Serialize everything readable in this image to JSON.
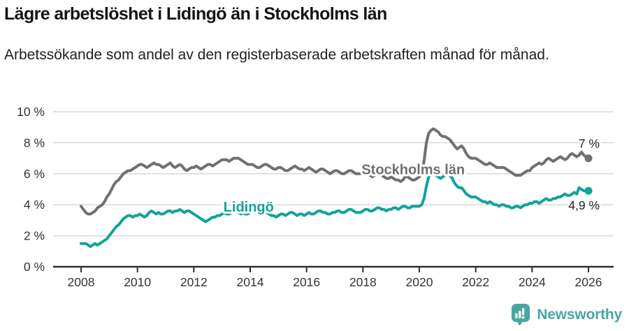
{
  "header": {
    "title": "Lägre arbetslöshet i Lidingö än i Stockholms län",
    "subtitle": "Arbetssökande som andel av den registerbaserade arbetskraften månad för månad."
  },
  "chart_data": {
    "type": "line",
    "title": "Lägre arbetslöshet i Lidingö än i Stockholms län",
    "subtitle": "Arbetssökande som andel av den registerbaserade arbetskraften månad för månad.",
    "x_unit": "year",
    "y_unit": "%",
    "xlim": [
      2008.0,
      2026.2
    ],
    "ylim": [
      0,
      10
    ],
    "grid": "horizontal",
    "legend_position": "inline-labels",
    "colors": {
      "grid": "#d8d8d8",
      "axis": "#2f2f2f",
      "tick_label": "#333333",
      "annotation": "#222222"
    },
    "x_ticks": [
      {
        "label": "2008",
        "year": 2008
      },
      {
        "label": "2010",
        "year": 2010
      },
      {
        "label": "2012",
        "year": 2012
      },
      {
        "label": "2014",
        "year": 2014
      },
      {
        "label": "2016",
        "year": 2016
      },
      {
        "label": "2018",
        "year": 2018
      },
      {
        "label": "2020",
        "year": 2020
      },
      {
        "label": "2022",
        "year": 2022
      },
      {
        "label": "2024",
        "year": 2024
      },
      {
        "label": "2026",
        "year": 2026
      }
    ],
    "y_ticks": [
      {
        "label": "0 %",
        "value": 0
      },
      {
        "label": "2 %",
        "value": 2
      },
      {
        "label": "4 %",
        "value": 4
      },
      {
        "label": "6 %",
        "value": 6
      },
      {
        "label": "8 %",
        "value": 8
      },
      {
        "label": "10 %",
        "value": 10
      }
    ],
    "series": [
      {
        "name": "Stockholms län",
        "color": "#6f6f74",
        "start_year": 2008,
        "interval_months": 1,
        "name_label": {
          "year": 2017.95,
          "value": 6.28
        },
        "end_label": {
          "text": "7 %",
          "side": "above"
        },
        "values": [
          3.9,
          3.7,
          3.5,
          3.4,
          3.4,
          3.5,
          3.6,
          3.8,
          3.9,
          4.0,
          4.2,
          4.5,
          4.7,
          5.0,
          5.3,
          5.5,
          5.6,
          5.8,
          6.0,
          6.1,
          6.2,
          6.2,
          6.3,
          6.4,
          6.5,
          6.6,
          6.6,
          6.5,
          6.4,
          6.5,
          6.6,
          6.7,
          6.6,
          6.6,
          6.5,
          6.4,
          6.5,
          6.6,
          6.7,
          6.5,
          6.4,
          6.5,
          6.6,
          6.5,
          6.3,
          6.2,
          6.3,
          6.4,
          6.4,
          6.5,
          6.4,
          6.3,
          6.4,
          6.5,
          6.6,
          6.6,
          6.5,
          6.6,
          6.7,
          6.8,
          6.9,
          6.9,
          6.9,
          6.8,
          6.9,
          7.0,
          7.0,
          7.0,
          6.9,
          6.8,
          6.7,
          6.6,
          6.6,
          6.6,
          6.5,
          6.4,
          6.4,
          6.5,
          6.6,
          6.6,
          6.5,
          6.4,
          6.3,
          6.3,
          6.4,
          6.4,
          6.3,
          6.2,
          6.2,
          6.3,
          6.4,
          6.5,
          6.4,
          6.3,
          6.3,
          6.2,
          6.3,
          6.4,
          6.3,
          6.2,
          6.1,
          6.2,
          6.3,
          6.3,
          6.2,
          6.1,
          6.0,
          6.1,
          6.2,
          6.2,
          6.1,
          6.0,
          6.0,
          6.1,
          6.2,
          6.2,
          6.1,
          6.0,
          6.0,
          6.0,
          6.1,
          6.0,
          6.0,
          5.9,
          5.8,
          5.9,
          6.0,
          6.0,
          5.9,
          5.8,
          5.7,
          5.7,
          5.8,
          5.7,
          5.6,
          5.6,
          5.5,
          5.6,
          5.8,
          5.8,
          5.7,
          5.6,
          5.6,
          5.7,
          5.8,
          6.0,
          6.8,
          8.0,
          8.6,
          8.8,
          8.9,
          8.8,
          8.7,
          8.5,
          8.4,
          8.4,
          8.3,
          8.2,
          8.0,
          7.8,
          7.6,
          7.7,
          7.8,
          7.6,
          7.3,
          7.1,
          7.0,
          7.0,
          7.0,
          6.9,
          6.8,
          6.7,
          6.6,
          6.6,
          6.7,
          6.6,
          6.5,
          6.4,
          6.4,
          6.4,
          6.4,
          6.3,
          6.2,
          6.1,
          6.0,
          5.9,
          5.9,
          5.9,
          6.0,
          6.1,
          6.2,
          6.2,
          6.4,
          6.5,
          6.6,
          6.7,
          6.6,
          6.7,
          6.9,
          7.0,
          6.9,
          6.8,
          6.9,
          7.0,
          7.1,
          7.0,
          6.9,
          7.0,
          7.2,
          7.3,
          7.2,
          7.1,
          7.2,
          7.4,
          7.2,
          7.1,
          7.0
        ]
      },
      {
        "name": "Lidingö",
        "color": "#10a39c",
        "start_year": 2008,
        "interval_months": 1,
        "name_label": {
          "year": 2013.05,
          "value": 3.88
        },
        "end_label": {
          "text": "4,9 %",
          "side": "below"
        },
        "values": [
          1.5,
          1.5,
          1.5,
          1.4,
          1.3,
          1.4,
          1.5,
          1.4,
          1.5,
          1.6,
          1.7,
          1.8,
          2.0,
          2.2,
          2.4,
          2.6,
          2.7,
          2.9,
          3.1,
          3.2,
          3.3,
          3.3,
          3.2,
          3.3,
          3.3,
          3.4,
          3.3,
          3.2,
          3.3,
          3.5,
          3.6,
          3.5,
          3.4,
          3.5,
          3.4,
          3.4,
          3.5,
          3.6,
          3.6,
          3.5,
          3.6,
          3.6,
          3.7,
          3.6,
          3.5,
          3.6,
          3.6,
          3.5,
          3.4,
          3.3,
          3.2,
          3.1,
          3.0,
          2.9,
          3.0,
          3.1,
          3.2,
          3.2,
          3.3,
          3.3,
          3.4,
          3.5,
          3.4,
          3.4,
          3.5,
          3.6,
          3.6,
          3.5,
          3.4,
          3.5,
          3.4,
          3.4,
          3.5,
          3.6,
          3.5,
          3.5,
          3.6,
          3.5,
          3.6,
          3.5,
          3.4,
          3.3,
          3.3,
          3.2,
          3.3,
          3.4,
          3.4,
          3.3,
          3.4,
          3.5,
          3.5,
          3.4,
          3.3,
          3.4,
          3.4,
          3.3,
          3.4,
          3.5,
          3.4,
          3.4,
          3.5,
          3.6,
          3.6,
          3.5,
          3.5,
          3.4,
          3.4,
          3.5,
          3.5,
          3.6,
          3.6,
          3.5,
          3.5,
          3.6,
          3.7,
          3.7,
          3.6,
          3.5,
          3.5,
          3.5,
          3.6,
          3.7,
          3.7,
          3.6,
          3.6,
          3.7,
          3.8,
          3.8,
          3.7,
          3.7,
          3.6,
          3.7,
          3.7,
          3.8,
          3.8,
          3.7,
          3.8,
          3.9,
          3.9,
          3.8,
          3.8,
          3.9,
          3.9,
          3.9,
          3.9,
          4.0,
          4.4,
          5.2,
          5.8,
          6.0,
          6.0,
          5.9,
          5.8,
          5.7,
          5.8,
          5.9,
          6.0,
          5.9,
          5.7,
          5.4,
          5.2,
          5.1,
          5.1,
          4.9,
          4.7,
          4.6,
          4.5,
          4.5,
          4.5,
          4.4,
          4.3,
          4.2,
          4.2,
          4.1,
          4.2,
          4.1,
          4.0,
          4.0,
          3.9,
          4.0,
          4.0,
          3.9,
          3.9,
          3.8,
          3.8,
          3.9,
          3.9,
          3.8,
          3.9,
          4.0,
          4.0,
          4.1,
          4.1,
          4.2,
          4.2,
          4.1,
          4.2,
          4.3,
          4.4,
          4.3,
          4.3,
          4.4,
          4.4,
          4.5,
          4.5,
          4.6,
          4.7,
          4.6,
          4.6,
          4.7,
          4.8,
          4.7,
          5.1,
          5.0,
          4.9,
          4.9,
          4.9
        ]
      }
    ]
  },
  "footer": {
    "brand": "Newsworthy",
    "brand_color": "#4aa6a2"
  }
}
